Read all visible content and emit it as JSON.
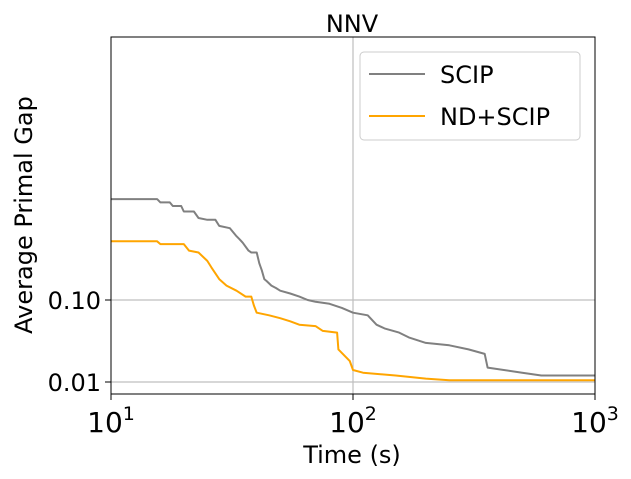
{
  "chart_data": {
    "type": "line",
    "title": "NNV",
    "xlabel": "Time (s)",
    "ylabel": "Average Primal Gap",
    "x_scale": "log",
    "xlim": [
      10,
      1000
    ],
    "x_ticks": [
      {
        "value": 10,
        "base": "10",
        "exp": "1"
      },
      {
        "value": 100,
        "base": "10",
        "exp": "2"
      },
      {
        "value": 1000,
        "base": "10",
        "exp": "3"
      }
    ],
    "y_ticks": [
      {
        "value": 0.1,
        "label": "0.10"
      },
      {
        "value": 0.01,
        "label": "0.01"
      }
    ],
    "grid": {
      "x": [
        100
      ],
      "y": [
        0.1,
        0.01
      ]
    },
    "legend_position": "top-right",
    "series": [
      {
        "name": "SCIP",
        "color": "#808080",
        "points": [
          [
            10,
            1.7
          ],
          [
            15.5,
            1.7
          ],
          [
            16,
            1.55
          ],
          [
            17.5,
            1.55
          ],
          [
            18,
            1.4
          ],
          [
            19.5,
            1.4
          ],
          [
            20,
            1.2
          ],
          [
            22,
            1.2
          ],
          [
            23,
            1.0
          ],
          [
            25,
            0.95
          ],
          [
            27,
            0.95
          ],
          [
            28,
            0.8
          ],
          [
            31,
            0.75
          ],
          [
            33,
            0.6
          ],
          [
            34,
            0.55
          ],
          [
            35,
            0.5
          ],
          [
            37,
            0.4
          ],
          [
            38,
            0.38
          ],
          [
            40,
            0.38
          ],
          [
            41,
            0.28
          ],
          [
            42,
            0.23
          ],
          [
            43,
            0.18
          ],
          [
            44,
            0.17
          ],
          [
            46,
            0.15
          ],
          [
            48,
            0.14
          ],
          [
            50,
            0.13
          ],
          [
            55,
            0.12
          ],
          [
            60,
            0.11
          ],
          [
            65,
            0.1
          ],
          [
            70,
            0.095
          ],
          [
            80,
            0.09
          ],
          [
            90,
            0.08
          ],
          [
            100,
            0.07
          ],
          [
            115,
            0.065
          ],
          [
            125,
            0.05
          ],
          [
            135,
            0.045
          ],
          [
            155,
            0.04
          ],
          [
            170,
            0.035
          ],
          [
            200,
            0.03
          ],
          [
            250,
            0.028
          ],
          [
            300,
            0.025
          ],
          [
            350,
            0.022
          ],
          [
            360,
            0.015
          ],
          [
            500,
            0.013
          ],
          [
            600,
            0.012
          ],
          [
            1000,
            0.012
          ]
        ]
      },
      {
        "name": "ND+SCIP",
        "color": "#FFA500",
        "points": [
          [
            10,
            0.52
          ],
          [
            15.5,
            0.52
          ],
          [
            16,
            0.48
          ],
          [
            20,
            0.48
          ],
          [
            21,
            0.4
          ],
          [
            23,
            0.38
          ],
          [
            25,
            0.3
          ],
          [
            26,
            0.25
          ],
          [
            28,
            0.18
          ],
          [
            30,
            0.15
          ],
          [
            33,
            0.13
          ],
          [
            36,
            0.11
          ],
          [
            38,
            0.11
          ],
          [
            39,
            0.085
          ],
          [
            40,
            0.07
          ],
          [
            45,
            0.065
          ],
          [
            50,
            0.06
          ],
          [
            55,
            0.055
          ],
          [
            60,
            0.05
          ],
          [
            70,
            0.048
          ],
          [
            75,
            0.042
          ],
          [
            86,
            0.04
          ],
          [
            87,
            0.025
          ],
          [
            97,
            0.018
          ],
          [
            100,
            0.014
          ],
          [
            110,
            0.013
          ],
          [
            150,
            0.012
          ],
          [
            200,
            0.011
          ],
          [
            250,
            0.0105
          ],
          [
            1000,
            0.0105
          ]
        ]
      }
    ]
  }
}
